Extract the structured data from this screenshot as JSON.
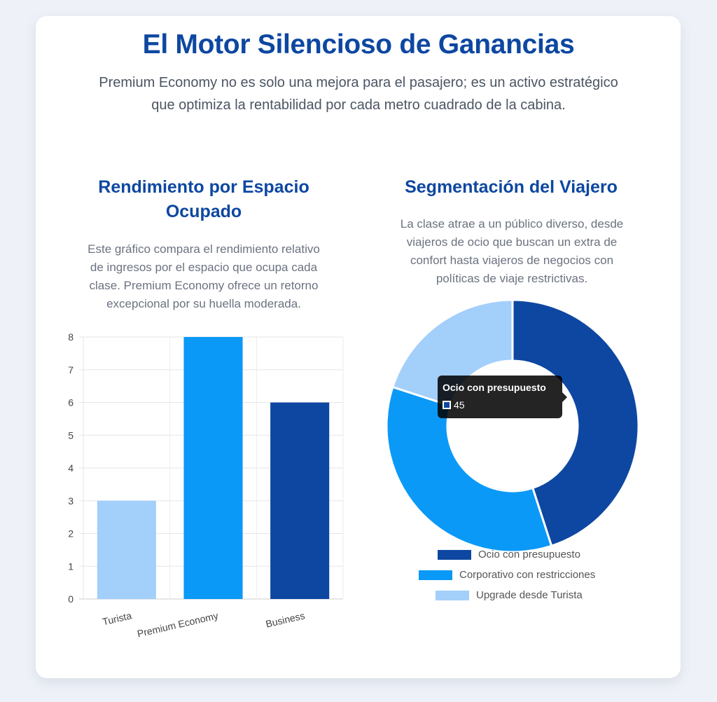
{
  "header": {
    "title": "El Motor Silencioso de Ganancias",
    "subtitle_line1": "Premium Economy no es solo una mejora para el pasajero; es un activo estratégico",
    "subtitle_line2": "que optimiza la rentabilidad por cada metro cuadrado de la cabina."
  },
  "left_section": {
    "title_line1": "Rendimiento por Espacio",
    "title_line2": "Ocupado",
    "desc_lines": [
      "Este gráfico compara el rendimiento relativo",
      "de ingresos por el espacio que ocupa cada",
      "clase. Premium Economy ofrece un retorno",
      "excepcional por su huella moderada."
    ]
  },
  "right_section": {
    "title": "Segmentación del Viajero",
    "desc_lines": [
      "La clase atrae a un público diverso, desde",
      "viajeros de ocio que buscan un extra de",
      "confort hasta viajeros de negocios con",
      "políticas de viaje restrictivas."
    ]
  },
  "tooltip": {
    "title": "Ocio con presupuesto",
    "value": "45"
  },
  "chart_data": [
    {
      "type": "bar",
      "categories": [
        "Turista",
        "Premium Economy",
        "Business"
      ],
      "values": [
        3,
        8,
        6
      ],
      "colors": [
        "#a3cffb",
        "#0b99f7",
        "#0d47a1"
      ],
      "ylim": [
        0,
        8
      ],
      "yticks": [
        "0",
        "1",
        "2",
        "3",
        "4",
        "5",
        "6",
        "7",
        "8"
      ],
      "grid": true
    },
    {
      "type": "pie",
      "variant": "doughnut",
      "labels": [
        "Ocio con presupuesto",
        "Corporativo con restricciones",
        "Upgrade desde Turista"
      ],
      "values": [
        45,
        35,
        20
      ],
      "colors": [
        "#0d47a1",
        "#0b99f7",
        "#a3cffb"
      ],
      "legend": "bottom"
    }
  ]
}
